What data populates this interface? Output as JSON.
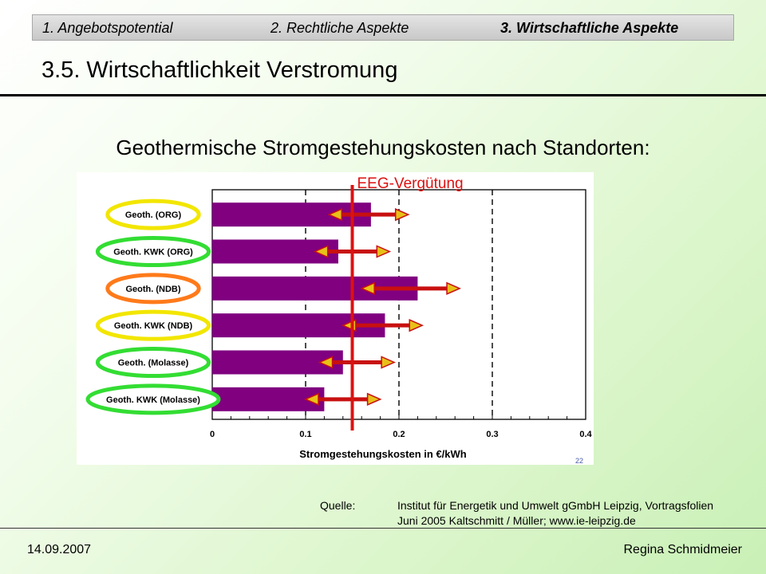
{
  "nav": {
    "items": [
      {
        "label": "1. Angebotspotential"
      },
      {
        "label": "2. Rechtliche Aspekte"
      },
      {
        "label": "3. Wirtschaftliche Aspekte"
      }
    ]
  },
  "page_title": "3.5. Wirtschaftlichkeit Verstromung",
  "subtitle": "Geothermische Stromgestehungskosten nach Standorten:",
  "chart_data": {
    "type": "bar",
    "orientation": "horizontal",
    "categories": [
      "Geoth. (ORG)",
      "Geoth. KWK (ORG)",
      "Geoth. (NDB)",
      "Geoth. KWK (NDB)",
      "Geoth. (Molasse)",
      "Geoth. KWK (Molasse)"
    ],
    "values": [
      0.17,
      0.135,
      0.22,
      0.185,
      0.14,
      0.12
    ],
    "ranges": [
      [
        0.125,
        0.21
      ],
      [
        0.11,
        0.19
      ],
      [
        0.16,
        0.265
      ],
      [
        0.14,
        0.225
      ],
      [
        0.115,
        0.195
      ],
      [
        0.1,
        0.18
      ]
    ],
    "category_outline_colors": [
      "#f2e600",
      "#33dd33",
      "#ff7a1a",
      "#f2e600",
      "#33dd33",
      "#33dd33"
    ],
    "bar_color": "#800080",
    "xlim": [
      0,
      0.4
    ],
    "xticks": [
      "0",
      "0.1",
      "0.2",
      "0.3",
      "0.4"
    ],
    "xlabel": "Stromgestehungskosten in €/kWh",
    "reference_line": {
      "value": 0.15,
      "label": "EEG-Vergütung",
      "color": "#dd1111"
    },
    "grid": "dashed vertical at 0.1, 0.2, 0.3",
    "corner_note": "22"
  },
  "source": {
    "label": "Quelle:",
    "line1": "Institut für Energetik und Umwelt gGmbH Leipzig, Vortragsfolien",
    "line2": "Juni 2005 Kaltschmitt / Müller; www.ie-leipzig.de"
  },
  "footer": {
    "date": "14.09.2007",
    "author": "Regina Schmidmeier"
  }
}
